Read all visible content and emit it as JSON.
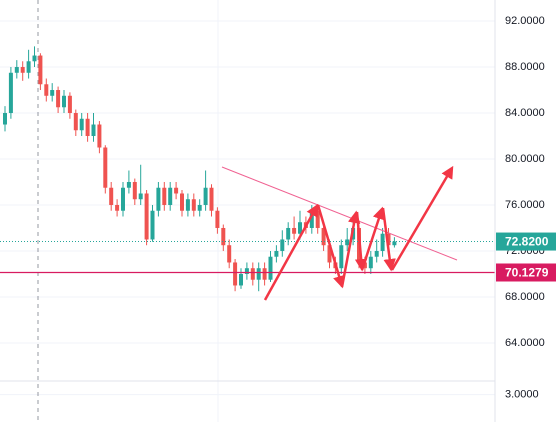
{
  "chart_data": {
    "type": "candlestick",
    "open": [
      83,
      84,
      87.5,
      88,
      87.5,
      88.5,
      89,
      86.5,
      85.5,
      86,
      84.5,
      85.5,
      84,
      82.5,
      83.5,
      82,
      83,
      81,
      77.5,
      76,
      75.5,
      77.5,
      78,
      76.5,
      77,
      73,
      75.5,
      77.5,
      76,
      77.5,
      77,
      75.5,
      76.5,
      75.5,
      76,
      77.5,
      75.5,
      74,
      72.5,
      71,
      69,
      70,
      70.5,
      69.5,
      70.5,
      69.5,
      71.5,
      72,
      73,
      74,
      73.5,
      74.5,
      74,
      75.5,
      74,
      72.5,
      71,
      70.5,
      72.5,
      73,
      74,
      71,
      70.5,
      71.5,
      72,
      73.5,
      72.5
    ],
    "high": [
      84.6,
      88,
      88.6,
      88.5,
      89.5,
      89.8,
      89.2,
      87,
      86.6,
      86.3,
      86,
      85.8,
      84.3,
      84,
      84,
      84,
      83.3,
      81.2,
      78,
      76.5,
      78,
      79,
      78.3,
      79.5,
      77.3,
      76,
      78,
      78,
      78,
      78,
      77.3,
      77,
      77,
      76.5,
      79,
      77.8,
      75.8,
      74.3,
      73,
      71.3,
      70.5,
      71,
      71,
      71,
      71,
      72,
      72.5,
      73.8,
      74.5,
      75,
      75.5,
      75,
      76,
      75.8,
      74.3,
      73,
      71.5,
      73,
      74,
      75,
      74.3,
      71.5,
      72,
      73,
      74,
      74,
      73.2
    ],
    "low": [
      82.4,
      83.5,
      87,
      86.8,
      87,
      88,
      86,
      85,
      85,
      84,
      84,
      83.5,
      82,
      82,
      81.5,
      81.5,
      80.5,
      77,
      75.5,
      75,
      75,
      77,
      76,
      76,
      72.5,
      72.8,
      75,
      75.5,
      75.5,
      76.5,
      75,
      75,
      75,
      75,
      75.5,
      75,
      73.5,
      72,
      70.5,
      68.5,
      68.7,
      69.5,
      69,
      68.5,
      69,
      69.3,
      71,
      71.5,
      72.5,
      73,
      73,
      73.5,
      73.5,
      73.5,
      72,
      70.5,
      70,
      70,
      72,
      72.5,
      70.5,
      70,
      70,
      71,
      71.5,
      72,
      72.3
    ],
    "close": [
      84,
      87.5,
      88,
      87.5,
      88.5,
      89,
      86.5,
      85.5,
      86,
      84.5,
      85.5,
      84,
      82.5,
      83.5,
      82,
      83,
      81,
      77.5,
      76,
      75.5,
      77.5,
      78,
      76.5,
      77,
      73,
      75.5,
      77.5,
      76,
      77.5,
      77,
      75.5,
      76.5,
      75.5,
      76,
      77.5,
      75.5,
      74,
      72.5,
      71,
      69,
      70,
      70.5,
      69.5,
      70.5,
      69.5,
      71.5,
      72,
      73,
      74,
      73.5,
      74.5,
      74,
      75.5,
      74,
      72.5,
      71,
      70.5,
      72.5,
      73,
      74,
      71,
      70.5,
      71.5,
      72,
      73.5,
      72.5,
      72.82
    ],
    "up_color": "#26a69a",
    "down_color": "#ef5350",
    "ylim": [
      60.69,
      93.83
    ],
    "yticks": [
      {
        "value": 92,
        "label": "92.0000"
      },
      {
        "value": 88,
        "label": "88.0000"
      },
      {
        "value": 84,
        "label": "84.0000"
      },
      {
        "value": 80,
        "label": "80.0000"
      },
      {
        "value": 76,
        "label": "76.0000"
      },
      {
        "value": 72,
        "label": "72.0000"
      },
      {
        "value": 68,
        "label": "68.0000"
      },
      {
        "value": 64,
        "label": "64.0000"
      }
    ],
    "price_lines": [
      {
        "value": 72.82,
        "label": "72.8200",
        "color": "#26a69a"
      },
      {
        "value": 70.1279,
        "label": "70.1279",
        "color": "#d81b60"
      }
    ],
    "lower_ylim": [
      1,
      4
    ],
    "lower_yticks": [
      {
        "value": 3,
        "label": "3.0000"
      }
    ],
    "grid": true
  }
}
